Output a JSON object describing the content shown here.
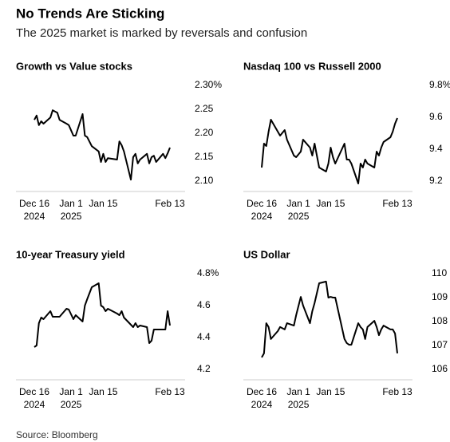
{
  "title": "No Trends Are Sticking",
  "subtitle": "The 2025 market is marked by reversals and confusion",
  "source": "Source: Bloomberg",
  "chart_data": [
    {
      "type": "line",
      "title": "Growth vs Value stocks",
      "x": [
        "2024-12-16",
        "2024-12-17",
        "2024-12-18",
        "2024-12-19",
        "2024-12-20",
        "2024-12-23",
        "2024-12-24",
        "2024-12-26",
        "2024-12-27",
        "2024-12-30",
        "2024-12-31",
        "2025-01-02",
        "2025-01-03",
        "2025-01-06",
        "2025-01-07",
        "2025-01-08",
        "2025-01-10",
        "2025-01-13",
        "2025-01-14",
        "2025-01-15",
        "2025-01-16",
        "2025-01-17",
        "2025-01-21",
        "2025-01-22",
        "2025-01-23",
        "2025-01-24",
        "2025-01-27",
        "2025-01-28",
        "2025-01-29",
        "2025-01-30",
        "2025-01-31",
        "2025-02-03",
        "2025-02-04",
        "2025-02-05",
        "2025-02-06",
        "2025-02-07",
        "2025-02-10",
        "2025-02-11",
        "2025-02-12",
        "2025-02-13"
      ],
      "series": [
        {
          "color": "#000000",
          "values": [
            2.228,
            2.237,
            2.217,
            2.225,
            2.22,
            2.233,
            2.248,
            2.243,
            2.228,
            2.22,
            2.217,
            2.195,
            2.195,
            2.24,
            2.195,
            2.192,
            2.173,
            2.162,
            2.14,
            2.157,
            2.14,
            2.148,
            2.145,
            2.183,
            2.175,
            2.162,
            2.103,
            2.15,
            2.157,
            2.137,
            2.145,
            2.157,
            2.137,
            2.15,
            2.153,
            2.14,
            2.157,
            2.148,
            2.158,
            2.17
          ]
        }
      ],
      "xlim": [
        "2024-12-16",
        "2025-02-13"
      ],
      "xticks": [
        {
          "value": "2024-12-16",
          "label": [
            "Dec 16",
            "2024"
          ]
        },
        {
          "value": "2025-01-01",
          "label": [
            "Jan 1",
            "2025"
          ]
        },
        {
          "value": "2025-01-15",
          "label": [
            "Jan 15"
          ]
        },
        {
          "value": "2025-02-13",
          "label": [
            "Feb 13"
          ]
        }
      ],
      "ylim": [
        2.1,
        2.3
      ],
      "yticks": [
        {
          "value": 2.3,
          "label": "2.30%"
        },
        2.25,
        {
          "value": 2.2,
          "label": "2.20"
        },
        2.15,
        {
          "value": 2.1,
          "label": "2.10"
        }
      ]
    },
    {
      "type": "line",
      "title": "Nasdaq 100 vs Russell 2000",
      "x": [
        "2024-12-16",
        "2024-12-17",
        "2024-12-18",
        "2024-12-19",
        "2024-12-20",
        "2024-12-23",
        "2024-12-24",
        "2024-12-26",
        "2024-12-27",
        "2024-12-30",
        "2024-12-31",
        "2025-01-02",
        "2025-01-03",
        "2025-01-06",
        "2025-01-07",
        "2025-01-08",
        "2025-01-10",
        "2025-01-13",
        "2025-01-14",
        "2025-01-15",
        "2025-01-16",
        "2025-01-17",
        "2025-01-21",
        "2025-01-22",
        "2025-01-23",
        "2025-01-24",
        "2025-01-27",
        "2025-01-28",
        "2025-01-29",
        "2025-01-30",
        "2025-01-31",
        "2025-02-03",
        "2025-02-04",
        "2025-02-05",
        "2025-02-06",
        "2025-02-07",
        "2025-02-10",
        "2025-02-11",
        "2025-02-12",
        "2025-02-13"
      ],
      "series": [
        {
          "color": "#000000",
          "values": [
            9.285,
            9.435,
            9.42,
            9.51,
            9.585,
            9.51,
            9.485,
            9.52,
            9.46,
            9.36,
            9.35,
            9.385,
            9.46,
            9.41,
            9.36,
            9.435,
            9.285,
            9.26,
            9.31,
            9.41,
            9.35,
            9.31,
            9.435,
            9.335,
            9.335,
            9.31,
            9.185,
            9.31,
            9.285,
            9.335,
            9.31,
            9.285,
            9.385,
            9.36,
            9.41,
            9.445,
            9.475,
            9.51,
            9.56,
            9.595
          ]
        }
      ],
      "xlim": [
        "2024-12-16",
        "2025-02-13"
      ],
      "xticks": [
        {
          "value": "2024-12-16",
          "label": [
            "Dec 16",
            "2024"
          ]
        },
        {
          "value": "2025-01-01",
          "label": [
            "Jan 1",
            "2025"
          ]
        },
        {
          "value": "2025-01-15",
          "label": [
            "Jan 15"
          ]
        },
        {
          "value": "2025-02-13",
          "label": [
            "Feb 13"
          ]
        }
      ],
      "ylim": [
        9.2,
        9.8
      ],
      "yticks": [
        {
          "value": 9.8,
          "label": "9.8%"
        },
        9.6,
        9.4,
        9.2
      ]
    },
    {
      "type": "line",
      "title": "10-year Treasury yield",
      "x": [
        "2024-12-16",
        "2024-12-17",
        "2024-12-18",
        "2024-12-19",
        "2024-12-20",
        "2024-12-23",
        "2024-12-24",
        "2024-12-26",
        "2024-12-27",
        "2024-12-30",
        "2024-12-31",
        "2025-01-02",
        "2025-01-03",
        "2025-01-06",
        "2025-01-07",
        "2025-01-08",
        "2025-01-10",
        "2025-01-13",
        "2025-01-14",
        "2025-01-15",
        "2025-01-16",
        "2025-01-17",
        "2025-01-21",
        "2025-01-22",
        "2025-01-23",
        "2025-01-24",
        "2025-01-27",
        "2025-01-28",
        "2025-01-29",
        "2025-01-30",
        "2025-01-31",
        "2025-02-03",
        "2025-02-04",
        "2025-02-05",
        "2025-02-06",
        "2025-02-07",
        "2025-02-10",
        "2025-02-11",
        "2025-02-12",
        "2025-02-13"
      ],
      "series": [
        {
          "color": "#000000",
          "values": [
            4.34,
            4.35,
            4.49,
            4.525,
            4.515,
            4.565,
            4.53,
            4.53,
            4.53,
            4.58,
            4.575,
            4.515,
            4.54,
            4.5,
            4.6,
            4.64,
            4.715,
            4.74,
            4.6,
            4.59,
            4.565,
            4.58,
            4.55,
            4.54,
            4.565,
            4.525,
            4.48,
            4.465,
            4.49,
            4.465,
            4.475,
            4.465,
            4.365,
            4.38,
            4.45,
            4.45,
            4.45,
            4.45,
            4.565,
            4.475
          ]
        }
      ],
      "xlim": [
        "2024-12-16",
        "2025-02-13"
      ],
      "xticks": [
        {
          "value": "2024-12-16",
          "label": [
            "Dec 16",
            "2024"
          ]
        },
        {
          "value": "2025-01-01",
          "label": [
            "Jan 1",
            "2025"
          ]
        },
        {
          "value": "2025-01-15",
          "label": [
            "Jan 15"
          ]
        },
        {
          "value": "2025-02-13",
          "label": [
            "Feb 13"
          ]
        }
      ],
      "ylim": [
        4.2,
        4.8
      ],
      "yticks": [
        {
          "value": 4.8,
          "label": "4.8%"
        },
        4.6,
        4.4,
        4.2
      ]
    },
    {
      "type": "line",
      "title": "US Dollar",
      "x": [
        "2024-12-16",
        "2024-12-17",
        "2024-12-18",
        "2024-12-19",
        "2024-12-20",
        "2024-12-23",
        "2024-12-24",
        "2024-12-26",
        "2024-12-27",
        "2024-12-30",
        "2024-12-31",
        "2025-01-02",
        "2025-01-03",
        "2025-01-06",
        "2025-01-07",
        "2025-01-08",
        "2025-01-10",
        "2025-01-13",
        "2025-01-14",
        "2025-01-15",
        "2025-01-16",
        "2025-01-17",
        "2025-01-21",
        "2025-01-22",
        "2025-01-23",
        "2025-01-24",
        "2025-01-27",
        "2025-01-28",
        "2025-01-29",
        "2025-01-30",
        "2025-01-31",
        "2025-02-03",
        "2025-02-04",
        "2025-02-05",
        "2025-02-06",
        "2025-02-07",
        "2025-02-10",
        "2025-02-11",
        "2025-02-12",
        "2025-02-13"
      ],
      "series": [
        {
          "color": "#000000",
          "values": [
            106.5,
            106.67,
            107.93,
            107.77,
            107.27,
            107.6,
            107.77,
            107.67,
            107.93,
            107.83,
            108.27,
            109.03,
            108.67,
            107.93,
            108.43,
            108.77,
            109.6,
            109.67,
            109.0,
            109.03,
            109.0,
            109.0,
            107.27,
            107.1,
            107.03,
            107.03,
            107.93,
            107.77,
            107.67,
            107.27,
            107.77,
            108.03,
            107.77,
            107.43,
            107.67,
            107.83,
            107.67,
            107.67,
            107.5,
            106.67
          ]
        }
      ],
      "xlim": [
        "2024-12-16",
        "2025-02-13"
      ],
      "xticks": [
        {
          "value": "2024-12-16",
          "label": [
            "Dec 16",
            "2024"
          ]
        },
        {
          "value": "2025-01-01",
          "label": [
            "Jan 1",
            "2025"
          ]
        },
        {
          "value": "2025-01-15",
          "label": [
            "Jan 15"
          ]
        },
        {
          "value": "2025-02-13",
          "label": [
            "Feb 13"
          ]
        }
      ],
      "ylim": [
        106,
        110
      ],
      "yticks": [
        110,
        109,
        108,
        107,
        106
      ]
    }
  ]
}
